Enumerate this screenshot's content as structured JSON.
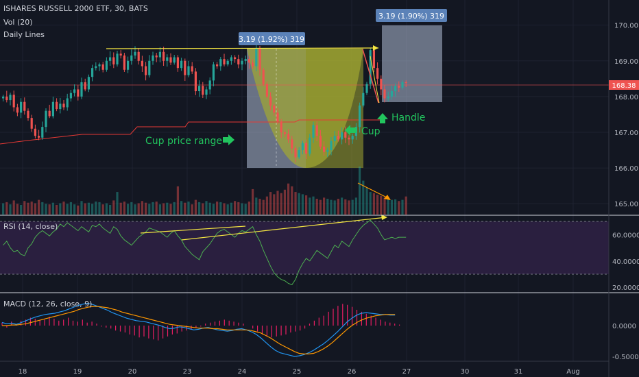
{
  "header": {
    "title": "ISHARES RUSSELL 2000 ETF, 30, BATS",
    "vol_label": "Vol (20)",
    "daily_lines": "Daily Lines",
    "rsi_label": "RSI (14, close)",
    "macd_label": "MACD (12, 26, close, 9)"
  },
  "colors": {
    "background": "#131722",
    "up": "#26a69a",
    "down": "#ef5350",
    "annotation_green": "#22c55e",
    "trend_yellow": "#f5e642",
    "rsi_band": "#2a1f3f",
    "rsi_line": "#4caf50",
    "macd_line": "#2196f3",
    "signal_line": "#ff9800",
    "histogram": "#e91e63",
    "daily_line": "#e53935",
    "box_fill": "#b0bed6",
    "label_bg": "#5b82b8"
  },
  "annotations": {
    "measure_label_1": "3.19 (1.92%) 319",
    "measure_label_2": "3.19 (1.90%) 319",
    "cup_range": "Cup price range",
    "cup": "Cup",
    "handle": "Handle"
  },
  "chart_data": [
    {
      "type": "candlestick",
      "panel": "price",
      "ylim": [
        164.85,
        170.55
      ],
      "y_ticks": [
        "170.00",
        "169.00",
        "168.00",
        "167.00",
        "166.00",
        "165.00"
      ],
      "last_price_label": "168.38",
      "x_ticks": [
        "18",
        "19",
        "20",
        "23",
        "24",
        "25",
        "26",
        "27",
        "30",
        "31",
        "Aug"
      ],
      "closes": [
        168.0,
        167.9,
        168.05,
        167.7,
        167.55,
        167.85,
        167.6,
        167.4,
        167.1,
        166.9,
        166.85,
        167.15,
        167.6,
        167.45,
        167.85,
        167.65,
        167.8,
        167.7,
        167.95,
        168.1,
        168.2,
        168.0,
        168.4,
        168.2,
        168.55,
        168.8,
        168.85,
        168.9,
        168.75,
        169.0,
        169.1,
        168.9,
        169.2,
        169.15,
        168.75,
        169.0,
        169.15,
        169.25,
        169.0,
        168.85,
        168.6,
        169.0,
        169.15,
        169.1,
        169.25,
        169.0,
        169.1,
        168.95,
        169.1,
        168.8,
        169.0,
        168.6,
        168.85,
        168.7,
        168.15,
        168.3,
        168.05,
        168.2,
        168.45,
        168.9,
        168.85,
        169.05,
        168.9,
        169.0,
        169.1,
        169.05,
        168.9,
        169.0,
        169.05,
        168.95,
        168.85,
        169.35,
        168.75,
        168.35,
        168.0,
        167.75,
        167.55,
        167.3,
        167.0,
        166.95,
        166.8,
        166.55,
        166.3,
        166.5,
        166.7,
        166.4,
        166.85,
        167.2,
        166.9,
        166.6,
        166.45,
        166.5,
        166.75,
        166.9,
        166.8,
        167.0,
        166.85,
        166.8,
        166.9,
        167.15,
        167.75,
        168.1,
        168.35,
        169.3,
        168.8,
        168.5,
        168.2,
        167.95,
        168.0,
        168.15,
        168.3,
        168.25,
        168.4,
        168.38
      ]
    },
    {
      "type": "bar",
      "panel": "volume",
      "values": [
        20,
        22,
        18,
        25,
        19,
        17,
        24,
        21,
        23,
        20,
        26,
        22,
        19,
        18,
        21,
        17,
        20,
        23,
        19,
        22,
        18,
        16,
        24,
        20,
        21,
        19,
        23,
        22,
        18,
        20,
        17,
        25,
        40,
        21,
        23,
        19,
        22,
        18,
        20,
        24,
        21,
        19,
        22,
        23,
        18,
        20,
        21,
        19,
        22,
        50,
        24,
        21,
        23,
        18,
        26,
        22,
        20,
        24,
        21,
        19,
        23,
        22,
        20,
        18,
        21,
        24,
        22,
        20,
        19,
        23,
        45,
        30,
        28,
        26,
        32,
        40,
        36,
        42,
        38,
        44,
        55,
        50,
        40,
        38,
        36,
        34,
        30,
        32,
        28,
        26,
        30,
        28,
        26,
        25,
        28,
        30,
        27,
        25,
        26,
        30,
        85,
        60,
        48,
        40,
        38,
        35,
        33,
        30,
        28,
        26,
        27,
        24,
        26,
        32
      ]
    },
    {
      "type": "line",
      "panel": "rsi",
      "ylim": [
        18,
        72
      ],
      "y_ticks": [
        "60.0000",
        "40.0000",
        "20.0000"
      ],
      "bands": [
        70,
        30
      ],
      "values": [
        52,
        55,
        50,
        47,
        48,
        45,
        44,
        50,
        53,
        58,
        61,
        63,
        61,
        59,
        62,
        64,
        68,
        66,
        69,
        67,
        65,
        63,
        66,
        64,
        62,
        67,
        66,
        68,
        65,
        63,
        61,
        66,
        64,
        59,
        56,
        54,
        52,
        55,
        58,
        60,
        62,
        65,
        64,
        63,
        62,
        60,
        58,
        61,
        63,
        59,
        56,
        51,
        48,
        45,
        43,
        41,
        47,
        50,
        53,
        57,
        61,
        63,
        64,
        62,
        60,
        58,
        61,
        63,
        62,
        64,
        66,
        60,
        55,
        48,
        42,
        36,
        31,
        28,
        26,
        25,
        23,
        22,
        26,
        33,
        38,
        42,
        40,
        44,
        48,
        46,
        44,
        42,
        47,
        52,
        50,
        55,
        53,
        51,
        56,
        60,
        64,
        67,
        69,
        71,
        68,
        65,
        60,
        56,
        57,
        58,
        57,
        58,
        58,
        58
      ]
    },
    {
      "type": "line",
      "panel": "macd",
      "ylim": [
        -0.55,
        0.42
      ],
      "y_ticks": [
        "0.0000",
        "-0.5000"
      ],
      "series": [
        {
          "values": [
            0.05,
            0.03,
            0.04,
            0.02,
            0.05,
            0.08,
            0.11,
            0.14,
            0.16,
            0.18,
            0.19,
            0.2,
            0.22,
            0.24,
            0.27,
            0.3,
            0.33,
            0.35,
            0.36,
            0.34,
            0.31,
            0.28,
            0.25,
            0.21,
            0.18,
            0.15,
            0.12,
            0.1,
            0.08,
            0.07,
            0.06,
            0.04,
            0.02,
            0.0,
            -0.03,
            -0.05,
            -0.04,
            -0.02,
            -0.03,
            -0.05,
            -0.07,
            -0.06,
            -0.04,
            -0.03,
            -0.05,
            -0.07,
            -0.08,
            -0.09,
            -0.08,
            -0.06,
            -0.05,
            -0.07,
            -0.1,
            -0.14,
            -0.2,
            -0.27,
            -0.34,
            -0.4,
            -0.44,
            -0.46,
            -0.48,
            -0.5,
            -0.49,
            -0.47,
            -0.44,
            -0.4,
            -0.35,
            -0.3,
            -0.24,
            -0.17,
            -0.1,
            -0.02,
            0.06,
            0.12,
            0.17,
            0.2,
            0.21,
            0.2,
            0.19,
            0.18,
            0.18,
            0.17,
            0.17
          ]
        },
        {
          "values": [
            0.0,
            0.0,
            0.01,
            0.01,
            0.02,
            0.03,
            0.05,
            0.07,
            0.09,
            0.11,
            0.13,
            0.15,
            0.17,
            0.19,
            0.21,
            0.23,
            0.26,
            0.28,
            0.3,
            0.31,
            0.31,
            0.3,
            0.29,
            0.27,
            0.25,
            0.22,
            0.2,
            0.18,
            0.16,
            0.14,
            0.12,
            0.1,
            0.08,
            0.06,
            0.04,
            0.02,
            0.01,
            0.0,
            -0.01,
            -0.02,
            -0.03,
            -0.04,
            -0.04,
            -0.04,
            -0.05,
            -0.05,
            -0.06,
            -0.07,
            -0.07,
            -0.07,
            -0.07,
            -0.07,
            -0.08,
            -0.1,
            -0.12,
            -0.16,
            -0.2,
            -0.25,
            -0.3,
            -0.34,
            -0.38,
            -0.42,
            -0.45,
            -0.46,
            -0.46,
            -0.45,
            -0.42,
            -0.38,
            -0.33,
            -0.27,
            -0.2,
            -0.13,
            -0.06,
            0.0,
            0.05,
            0.09,
            0.12,
            0.14,
            0.16,
            0.17,
            0.18,
            0.18,
            0.18
          ]
        }
      ],
      "histogram": [
        0.03,
        -0.02,
        0.04,
        0.01,
        0.05,
        0.06,
        0.08,
        0.07,
        0.05,
        0.06,
        0.09,
        0.07,
        0.05,
        0.06,
        0.08,
        0.05,
        0.04,
        0.06,
        0.03,
        0.04,
        0.02,
        -0.01,
        -0.02,
        -0.03,
        -0.05,
        -0.06,
        -0.07,
        -0.09,
        -0.1,
        -0.12,
        -0.11,
        -0.13,
        -0.14,
        -0.15,
        -0.13,
        -0.11,
        -0.09,
        -0.08,
        -0.06,
        -0.05,
        -0.04,
        -0.02,
        -0.01,
        0.02,
        0.03,
        0.04,
        0.05,
        0.06,
        0.05,
        0.04,
        0.03,
        0.02,
        0.0,
        -0.03,
        -0.06,
        -0.09,
        -0.11,
        -0.12,
        -0.11,
        -0.1,
        -0.09,
        -0.07,
        -0.06,
        -0.05,
        -0.03,
        0.02,
        0.05,
        0.08,
        0.1,
        0.14,
        0.17,
        0.2,
        0.22,
        0.21,
        0.19,
        0.16,
        0.14,
        0.12,
        0.1,
        0.08,
        0.06,
        0.04,
        0.03,
        0.02,
        0.01
      ]
    }
  ]
}
